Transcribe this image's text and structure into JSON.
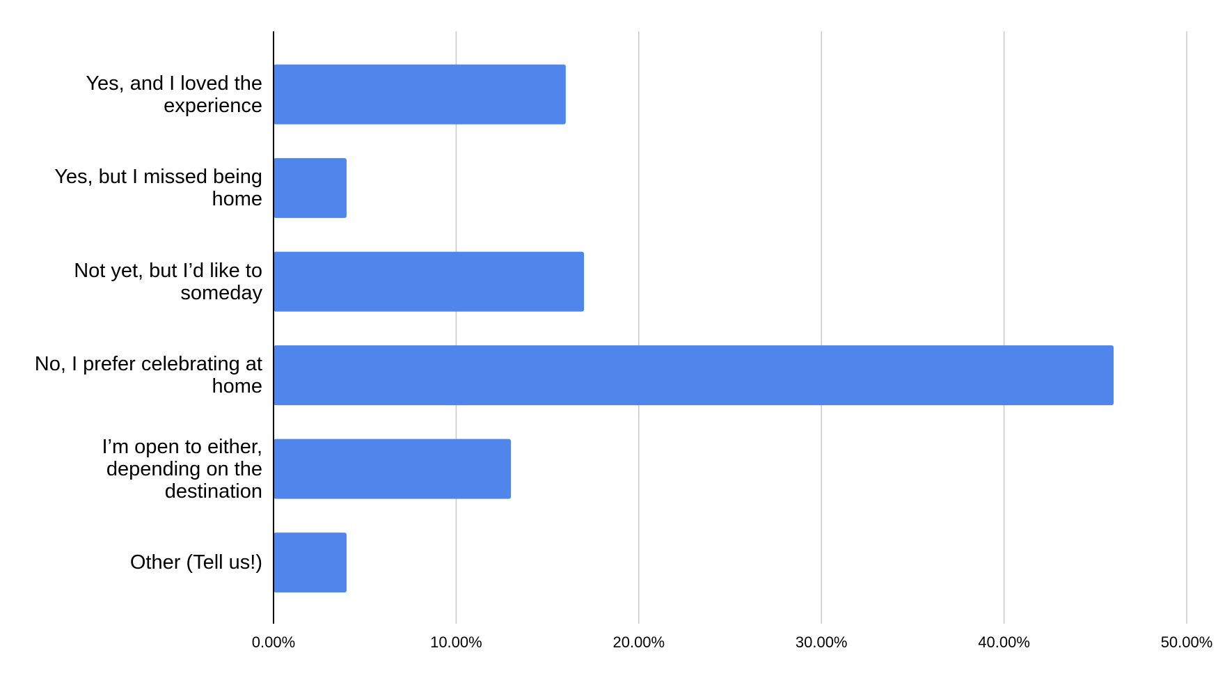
{
  "chart_data": {
    "type": "bar",
    "orientation": "horizontal",
    "categories": [
      "Yes, and I loved the experience",
      "Yes, but I missed being home",
      "Not yet, but I’d like to someday",
      "No, I prefer celebrating at home",
      "I’m open to either, depending on the destination",
      "Other (Tell us!)"
    ],
    "values": [
      16,
      4,
      17,
      46,
      13,
      4
    ],
    "color": "#5086ec",
    "xlim": [
      0,
      50
    ],
    "xticks": [
      {
        "value": 0,
        "label": "0.00%"
      },
      {
        "value": 10,
        "label": "10.00%"
      },
      {
        "value": 20,
        "label": "20.00%"
      },
      {
        "value": 30,
        "label": "30.00%"
      },
      {
        "value": 40,
        "label": "40.00%"
      },
      {
        "value": 50,
        "label": "50.00%"
      }
    ],
    "grid": true
  }
}
